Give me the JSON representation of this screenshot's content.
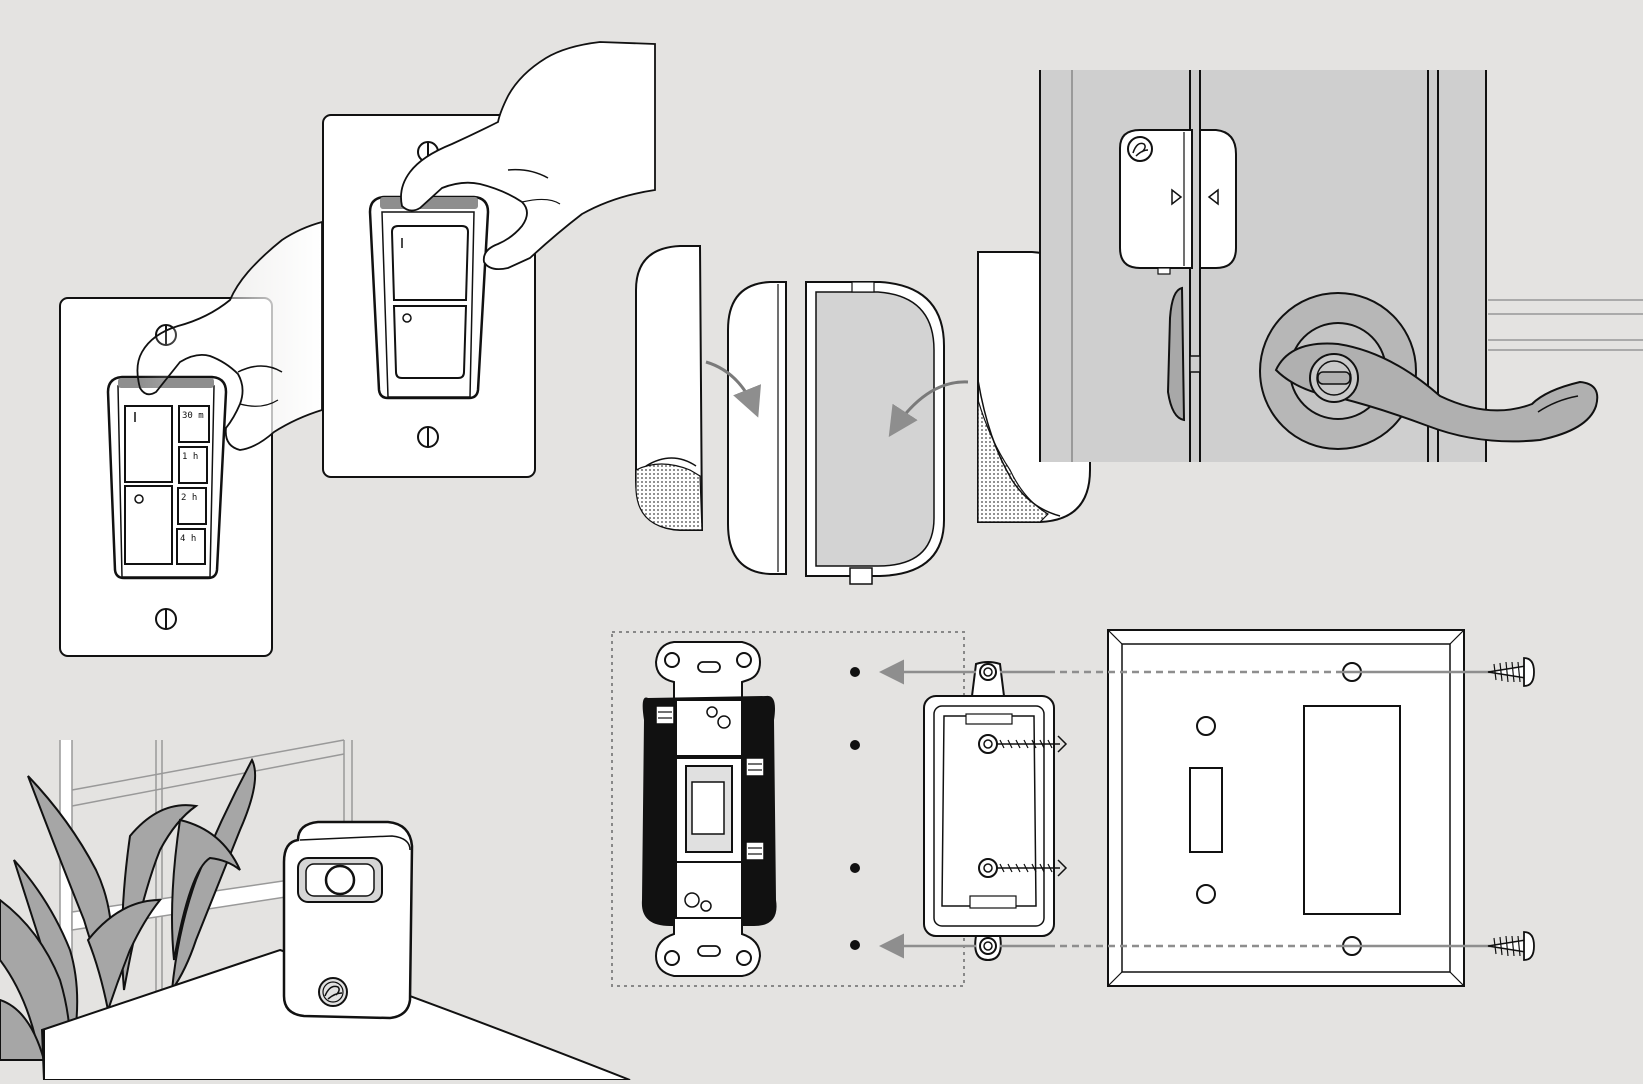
{
  "colors": {
    "background": "#e4e3e1",
    "outline": "#111111",
    "door_gray": "#cfcfcf",
    "arrow_gray": "#8e8e8e",
    "leaf_gray": "#a6a6a6"
  },
  "icons": {
    "ge_logo": "ge-logo-icon",
    "power_on": "power-line-icon",
    "power_off": "power-circle-icon"
  },
  "timer_switch": {
    "labels": [
      "30 m",
      "1 h",
      "2 h",
      "4 h"
    ]
  }
}
